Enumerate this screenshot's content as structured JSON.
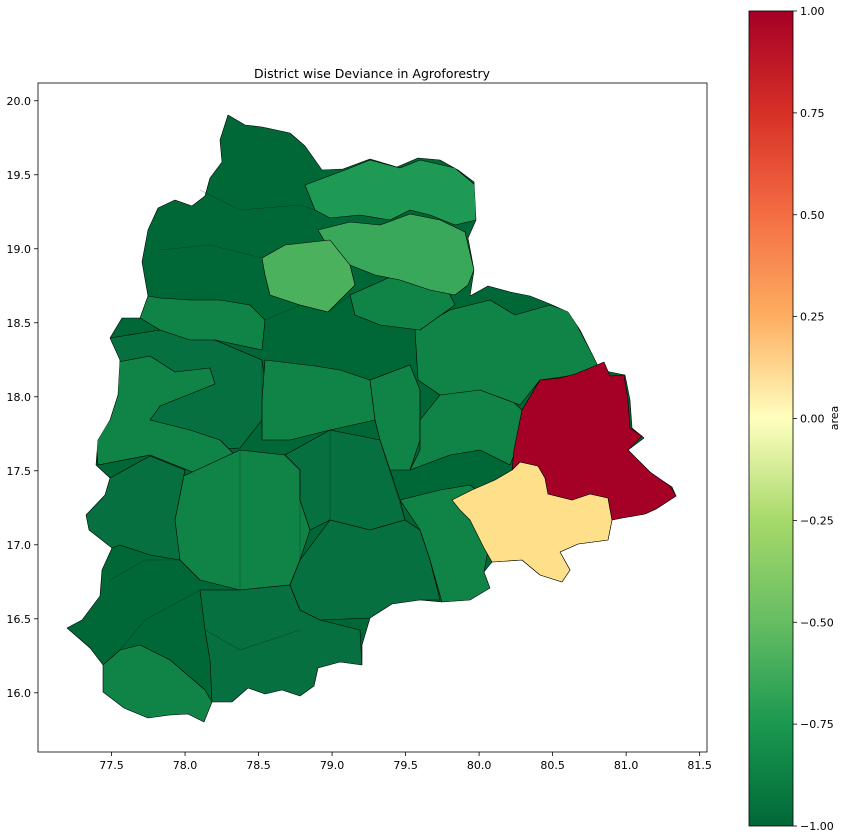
{
  "chart_data": {
    "type": "choropleth",
    "title": "District wise Deviance in Agroforestry",
    "x_ticks": [
      "77.5",
      "78.0",
      "78.5",
      "79.0",
      "79.5",
      "80.0",
      "80.5",
      "81.0",
      "81.5"
    ],
    "y_ticks": [
      "20.0",
      "19.5",
      "19.0",
      "18.5",
      "18.0",
      "17.5",
      "17.0",
      "16.5",
      "16.0"
    ],
    "xlim": [
      77.0,
      81.55
    ],
    "ylim": [
      15.6,
      20.12
    ],
    "colorbar": {
      "label": "area",
      "colormap": "RdYlGn_r",
      "range": [
        -1.0,
        1.0
      ],
      "ticks": [
        "1.00",
        "0.75",
        "0.50",
        "0.25",
        "0.00",
        "−0.25",
        "−0.50",
        "−0.75",
        "−1.00"
      ]
    },
    "districts_by_value": [
      {
        "value": 1.0,
        "color": "#a50026",
        "location": "east (Bhadradri Kothagudem)"
      },
      {
        "value": 0.2,
        "color": "#fee08b",
        "location": "south-east (Khammam)"
      },
      {
        "value": -0.65,
        "color": "#4cb15d",
        "location": "north-central"
      },
      {
        "value": -0.72,
        "color": "#3aa85a",
        "location": "north-east"
      },
      {
        "value": -0.8,
        "color": "#1f9a55",
        "location": "several central/north districts"
      },
      {
        "value": -0.88,
        "color": "#0f8446",
        "location": "many districts"
      },
      {
        "value": -0.95,
        "color": "#067040",
        "location": "many districts"
      },
      {
        "value": -1.0,
        "color": "#006837",
        "location": "several districts"
      }
    ]
  }
}
